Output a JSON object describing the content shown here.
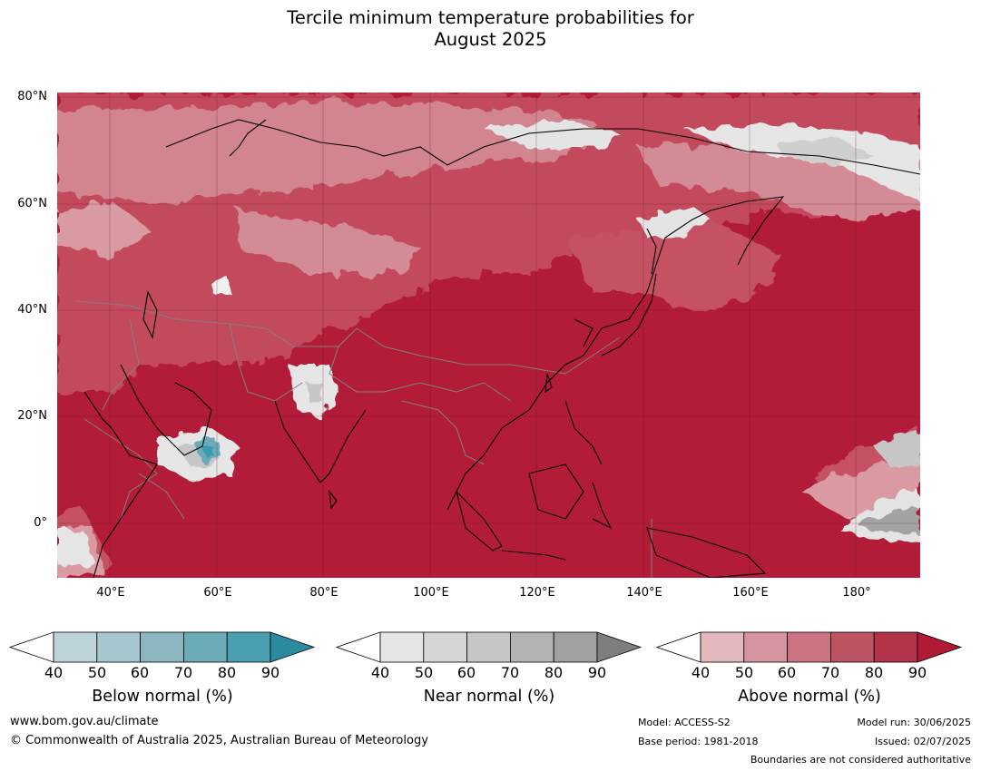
{
  "title_line1": "Tercile minimum temperature probabilities for",
  "title_line2": "August 2025",
  "lat_labels": [
    "80°N",
    "60°N",
    "40°N",
    "20°N",
    "0°"
  ],
  "lon_labels": [
    "40°E",
    "60°E",
    "80°E",
    "100°E",
    "120°E",
    "140°E",
    "160°E",
    "180°"
  ],
  "map": {
    "lat_range": [
      -10,
      81
    ],
    "lon_range": [
      30,
      192
    ],
    "projection": "equirectangular",
    "dominant_category": "Above normal",
    "colors": {
      "ocean_above": "#b21c38",
      "land_above_mid": "#c55164",
      "land_above_low": "#d38b95",
      "near_light": "#e4e4e4",
      "near_mid": "#c6c6c6",
      "near_dark": "#a3a3a3",
      "below_mid": "#6aabb7",
      "below_high": "#3b9baf",
      "coastline": "#000000",
      "borders": "#808080"
    }
  },
  "colorbars": [
    {
      "name": "below",
      "title": "Below normal (%)",
      "ticks": [
        "40",
        "50",
        "60",
        "70",
        "80",
        "90"
      ],
      "colors": [
        "#ffffff",
        "#bdd3da",
        "#a6c7cd",
        "#8bb6bf",
        "#6aabb7",
        "#4a9fb0",
        "#2a8c9e"
      ]
    },
    {
      "name": "near",
      "title": "Near normal (%)",
      "ticks": [
        "40",
        "50",
        "60",
        "70",
        "80",
        "90"
      ],
      "colors": [
        "#ffffff",
        "#e6e6e6",
        "#d6d6d6",
        "#c6c6c6",
        "#b3b3b3",
        "#a1a1a1",
        "#7e7e7e"
      ]
    },
    {
      "name": "above",
      "title": "Above normal (%)",
      "ticks": [
        "40",
        "50",
        "60",
        "70",
        "80",
        "90"
      ],
      "colors": [
        "#ffffff",
        "#e2b8bd",
        "#d6959e",
        "#c97480",
        "#bd5464",
        "#b2344a",
        "#b01a35"
      ]
    }
  ],
  "footer": {
    "website": "www.bom.gov.au/climate",
    "copyright": "© Commonwealth of Australia 2025, Australian Bureau of Meteorology",
    "model": "Model: ACCESS-S2",
    "base_period": "Base period: 1981-2018",
    "model_run": "Model run: 30/06/2025",
    "issued": "Issued: 02/07/2025",
    "disclaimer": "Boundaries are not considered authoritative"
  }
}
